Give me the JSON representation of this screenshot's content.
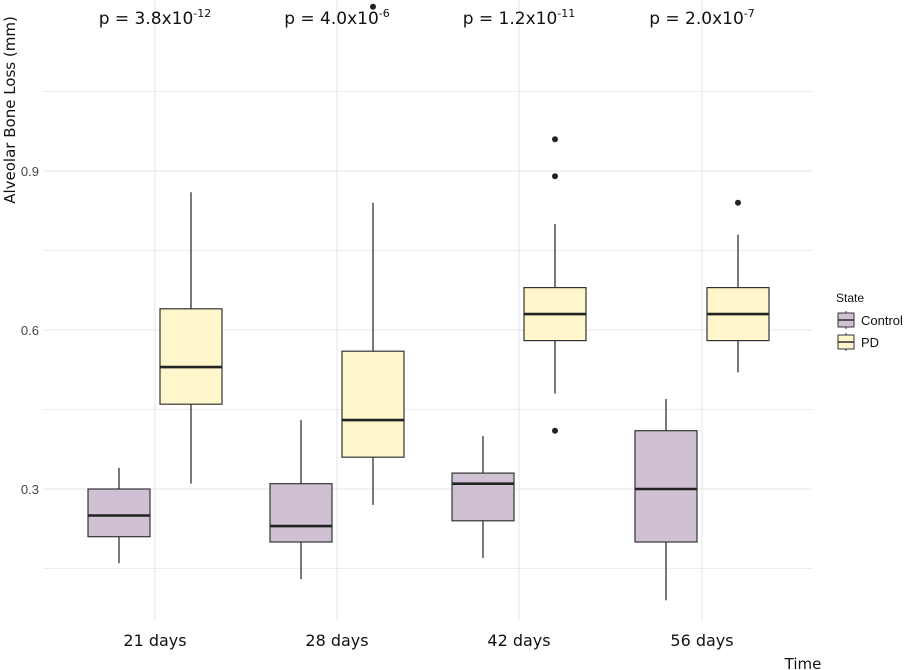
{
  "chart_data": {
    "type": "boxplot",
    "xlabel": "Time",
    "ylabel": "Alveolar Bone Loss (mm)",
    "ylim": [
      0.05,
      1.35
    ],
    "yticks": [
      0.3,
      0.6,
      0.9
    ],
    "ytick_labels": [
      "0.3",
      "0.6",
      "0.9"
    ],
    "categories": [
      "21 days",
      "28 days",
      "42 days",
      "56 days"
    ],
    "legend": {
      "title": "State",
      "entries": [
        {
          "name": "Control",
          "color": "#cfc0d4"
        },
        {
          "name": "PD",
          "color": "#fff6cb"
        }
      ]
    },
    "annotations": [
      {
        "category": "21 days",
        "base": "p = 3.8x10",
        "exp": "-12"
      },
      {
        "category": "28 days",
        "base": "p = 4.0x10",
        "exp": "-6"
      },
      {
        "category": "42 days",
        "base": "p = 1.2x10",
        "exp": "-11"
      },
      {
        "category": "56 days",
        "base": "p = 2.0x10",
        "exp": "-7"
      }
    ],
    "series": [
      {
        "name": "Control",
        "fill": "#cfc0d4",
        "boxes": [
          {
            "min": 0.16,
            "q1": 0.21,
            "median": 0.25,
            "q3": 0.3,
            "max": 0.34,
            "outliers": []
          },
          {
            "min": 0.13,
            "q1": 0.2,
            "median": 0.23,
            "q3": 0.31,
            "max": 0.43,
            "outliers": []
          },
          {
            "min": 0.17,
            "q1": 0.24,
            "median": 0.31,
            "q3": 0.33,
            "max": 0.4,
            "outliers": []
          },
          {
            "min": 0.09,
            "q1": 0.2,
            "median": 0.3,
            "q3": 0.41,
            "max": 0.47,
            "outliers": []
          }
        ]
      },
      {
        "name": "PD",
        "fill": "#fff6cb",
        "boxes": [
          {
            "min": 0.31,
            "q1": 0.46,
            "median": 0.53,
            "q3": 0.64,
            "max": 0.86,
            "outliers": []
          },
          {
            "min": 0.27,
            "q1": 0.36,
            "median": 0.43,
            "q3": 0.56,
            "max": 0.84,
            "outliers": [
              1.21
            ]
          },
          {
            "min": 0.48,
            "q1": 0.58,
            "median": 0.63,
            "q3": 0.68,
            "max": 0.8,
            "outliers": [
              0.41,
              0.89,
              0.96
            ]
          },
          {
            "min": 0.52,
            "q1": 0.58,
            "median": 0.63,
            "q3": 0.68,
            "max": 0.78,
            "outliers": [
              0.84
            ]
          }
        ]
      }
    ]
  }
}
